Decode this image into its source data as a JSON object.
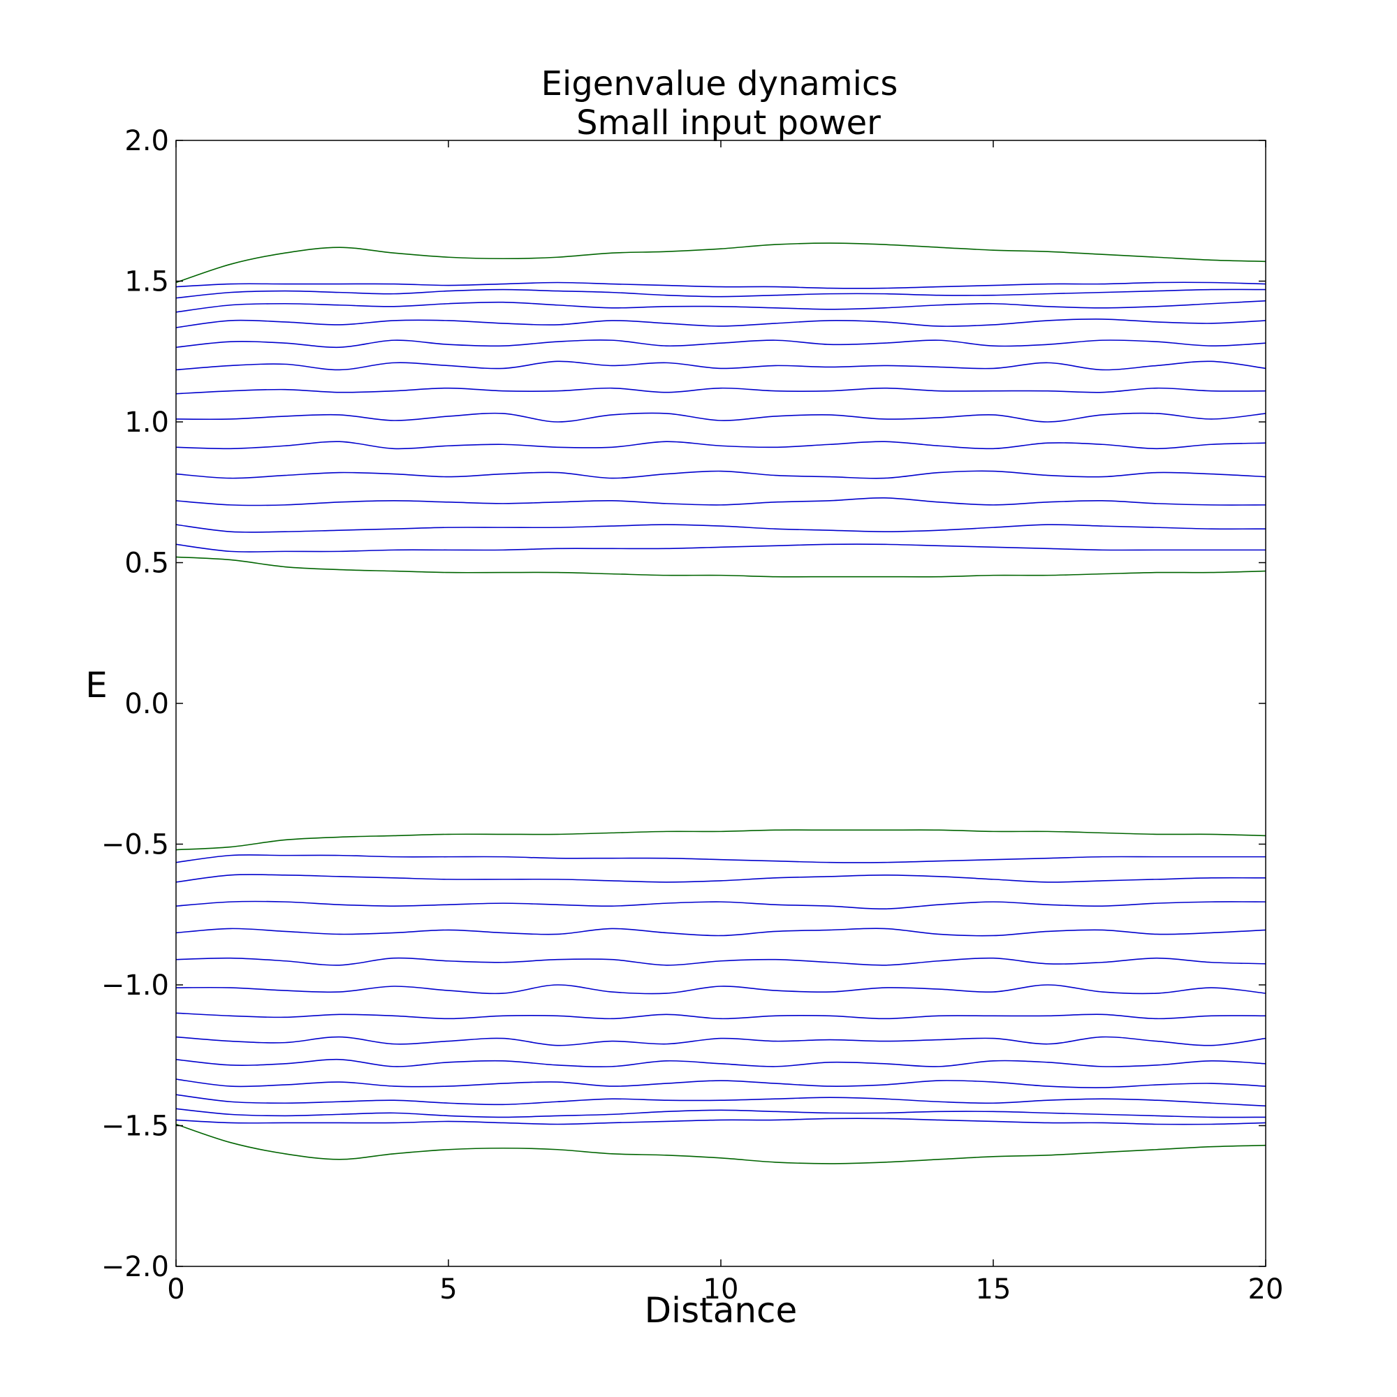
{
  "chart_data": {
    "type": "line",
    "title": "Eigenvalue dynamics",
    "subtitle": "Small input power",
    "xlabel": "Distance",
    "ylabel": "E",
    "xlim": [
      0,
      20
    ],
    "ylim": [
      -2.0,
      2.0
    ],
    "grid": false,
    "legend": "none",
    "x_ticks": [
      0,
      5,
      10,
      15,
      20
    ],
    "x_tick_labels": [
      "0",
      "5",
      "10",
      "15",
      "20"
    ],
    "y_ticks": [
      2.0,
      1.5,
      1.0,
      0.5,
      0.0,
      -0.5,
      -1.0,
      -1.5,
      -2.0
    ],
    "y_tick_labels": [
      "2.0",
      "1.5",
      "1.0",
      "0.5",
      "0.0",
      "−0.5",
      "−1.0",
      "−1.5",
      "−2.0"
    ],
    "colors": {
      "edge": "#006400",
      "bulk": "#0000cc"
    },
    "x": [
      0,
      1,
      2,
      3,
      4,
      5,
      6,
      7,
      8,
      9,
      10,
      11,
      12,
      13,
      14,
      15,
      16,
      17,
      18,
      19,
      20
    ],
    "series": [
      {
        "color": "#006400",
        "values": [
          1.495,
          1.56,
          1.6,
          1.62,
          1.6,
          1.585,
          1.58,
          1.585,
          1.6,
          1.605,
          1.615,
          1.63,
          1.635,
          1.63,
          1.62,
          1.61,
          1.605,
          1.595,
          1.585,
          1.575,
          1.57
        ]
      },
      {
        "color": "#0000cc",
        "values": [
          1.48,
          1.49,
          1.49,
          1.49,
          1.49,
          1.485,
          1.49,
          1.495,
          1.49,
          1.485,
          1.48,
          1.48,
          1.475,
          1.475,
          1.48,
          1.485,
          1.49,
          1.49,
          1.495,
          1.495,
          1.49
        ]
      },
      {
        "color": "#0000cc",
        "values": [
          1.44,
          1.46,
          1.465,
          1.46,
          1.455,
          1.465,
          1.47,
          1.465,
          1.46,
          1.45,
          1.445,
          1.45,
          1.455,
          1.455,
          1.45,
          1.45,
          1.455,
          1.46,
          1.465,
          1.47,
          1.47
        ]
      },
      {
        "color": "#0000cc",
        "values": [
          1.39,
          1.415,
          1.42,
          1.415,
          1.41,
          1.42,
          1.425,
          1.415,
          1.405,
          1.41,
          1.41,
          1.405,
          1.4,
          1.405,
          1.415,
          1.42,
          1.41,
          1.405,
          1.41,
          1.42,
          1.43
        ]
      },
      {
        "color": "#0000cc",
        "values": [
          1.335,
          1.36,
          1.355,
          1.345,
          1.36,
          1.36,
          1.35,
          1.345,
          1.36,
          1.35,
          1.34,
          1.35,
          1.36,
          1.355,
          1.34,
          1.345,
          1.36,
          1.365,
          1.355,
          1.35,
          1.36
        ]
      },
      {
        "color": "#0000cc",
        "values": [
          1.265,
          1.285,
          1.28,
          1.265,
          1.29,
          1.275,
          1.27,
          1.285,
          1.29,
          1.27,
          1.28,
          1.29,
          1.275,
          1.28,
          1.29,
          1.27,
          1.275,
          1.29,
          1.285,
          1.27,
          1.28
        ]
      },
      {
        "color": "#0000cc",
        "values": [
          1.185,
          1.2,
          1.205,
          1.185,
          1.21,
          1.2,
          1.19,
          1.215,
          1.2,
          1.21,
          1.19,
          1.2,
          1.195,
          1.2,
          1.195,
          1.19,
          1.21,
          1.185,
          1.2,
          1.215,
          1.19
        ]
      },
      {
        "color": "#0000cc",
        "values": [
          1.1,
          1.11,
          1.115,
          1.105,
          1.11,
          1.12,
          1.11,
          1.11,
          1.12,
          1.105,
          1.12,
          1.11,
          1.11,
          1.12,
          1.11,
          1.11,
          1.11,
          1.105,
          1.12,
          1.11,
          1.11
        ]
      },
      {
        "color": "#0000cc",
        "values": [
          1.01,
          1.01,
          1.02,
          1.025,
          1.005,
          1.02,
          1.03,
          1.0,
          1.025,
          1.03,
          1.005,
          1.02,
          1.025,
          1.01,
          1.015,
          1.025,
          1.0,
          1.025,
          1.03,
          1.01,
          1.03
        ]
      },
      {
        "color": "#0000cc",
        "values": [
          0.91,
          0.905,
          0.915,
          0.93,
          0.905,
          0.915,
          0.92,
          0.91,
          0.91,
          0.93,
          0.915,
          0.91,
          0.92,
          0.93,
          0.915,
          0.905,
          0.925,
          0.92,
          0.905,
          0.92,
          0.925
        ]
      },
      {
        "color": "#0000cc",
        "values": [
          0.815,
          0.8,
          0.81,
          0.82,
          0.815,
          0.805,
          0.815,
          0.82,
          0.8,
          0.815,
          0.825,
          0.81,
          0.805,
          0.8,
          0.82,
          0.825,
          0.81,
          0.805,
          0.82,
          0.815,
          0.805
        ]
      },
      {
        "color": "#0000cc",
        "values": [
          0.72,
          0.705,
          0.705,
          0.715,
          0.72,
          0.715,
          0.71,
          0.715,
          0.72,
          0.71,
          0.705,
          0.715,
          0.72,
          0.73,
          0.715,
          0.705,
          0.715,
          0.72,
          0.71,
          0.705,
          0.705
        ]
      },
      {
        "color": "#0000cc",
        "values": [
          0.635,
          0.61,
          0.61,
          0.615,
          0.62,
          0.625,
          0.625,
          0.625,
          0.63,
          0.635,
          0.63,
          0.62,
          0.615,
          0.61,
          0.615,
          0.625,
          0.635,
          0.63,
          0.625,
          0.62,
          0.62
        ]
      },
      {
        "color": "#0000cc",
        "values": [
          0.565,
          0.54,
          0.54,
          0.54,
          0.545,
          0.545,
          0.545,
          0.55,
          0.55,
          0.55,
          0.555,
          0.56,
          0.565,
          0.565,
          0.56,
          0.555,
          0.55,
          0.545,
          0.545,
          0.545,
          0.545
        ]
      },
      {
        "color": "#006400",
        "values": [
          0.52,
          0.51,
          0.485,
          0.475,
          0.47,
          0.465,
          0.465,
          0.465,
          0.46,
          0.455,
          0.455,
          0.45,
          0.45,
          0.45,
          0.45,
          0.455,
          0.455,
          0.46,
          0.465,
          0.465,
          0.47
        ]
      },
      {
        "color": "#006400",
        "values": [
          -0.52,
          -0.51,
          -0.485,
          -0.475,
          -0.47,
          -0.465,
          -0.465,
          -0.465,
          -0.46,
          -0.455,
          -0.455,
          -0.45,
          -0.45,
          -0.45,
          -0.45,
          -0.455,
          -0.455,
          -0.46,
          -0.465,
          -0.465,
          -0.47
        ]
      },
      {
        "color": "#0000cc",
        "values": [
          -0.565,
          -0.54,
          -0.54,
          -0.54,
          -0.545,
          -0.545,
          -0.545,
          -0.55,
          -0.55,
          -0.55,
          -0.555,
          -0.56,
          -0.565,
          -0.565,
          -0.56,
          -0.555,
          -0.55,
          -0.545,
          -0.545,
          -0.545,
          -0.545
        ]
      },
      {
        "color": "#0000cc",
        "values": [
          -0.635,
          -0.61,
          -0.61,
          -0.615,
          -0.62,
          -0.625,
          -0.625,
          -0.625,
          -0.63,
          -0.635,
          -0.63,
          -0.62,
          -0.615,
          -0.61,
          -0.615,
          -0.625,
          -0.635,
          -0.63,
          -0.625,
          -0.62,
          -0.62
        ]
      },
      {
        "color": "#0000cc",
        "values": [
          -0.72,
          -0.705,
          -0.705,
          -0.715,
          -0.72,
          -0.715,
          -0.71,
          -0.715,
          -0.72,
          -0.71,
          -0.705,
          -0.715,
          -0.72,
          -0.73,
          -0.715,
          -0.705,
          -0.715,
          -0.72,
          -0.71,
          -0.705,
          -0.705
        ]
      },
      {
        "color": "#0000cc",
        "values": [
          -0.815,
          -0.8,
          -0.81,
          -0.82,
          -0.815,
          -0.805,
          -0.815,
          -0.82,
          -0.8,
          -0.815,
          -0.825,
          -0.81,
          -0.805,
          -0.8,
          -0.82,
          -0.825,
          -0.81,
          -0.805,
          -0.82,
          -0.815,
          -0.805
        ]
      },
      {
        "color": "#0000cc",
        "values": [
          -0.91,
          -0.905,
          -0.915,
          -0.93,
          -0.905,
          -0.915,
          -0.92,
          -0.91,
          -0.91,
          -0.93,
          -0.915,
          -0.91,
          -0.92,
          -0.93,
          -0.915,
          -0.905,
          -0.925,
          -0.92,
          -0.905,
          -0.92,
          -0.925
        ]
      },
      {
        "color": "#0000cc",
        "values": [
          -1.01,
          -1.01,
          -1.02,
          -1.025,
          -1.005,
          -1.02,
          -1.03,
          -1.0,
          -1.025,
          -1.03,
          -1.005,
          -1.02,
          -1.025,
          -1.01,
          -1.015,
          -1.025,
          -1.0,
          -1.025,
          -1.03,
          -1.01,
          -1.03
        ]
      },
      {
        "color": "#0000cc",
        "values": [
          -1.1,
          -1.11,
          -1.115,
          -1.105,
          -1.11,
          -1.12,
          -1.11,
          -1.11,
          -1.12,
          -1.105,
          -1.12,
          -1.11,
          -1.11,
          -1.12,
          -1.11,
          -1.11,
          -1.11,
          -1.105,
          -1.12,
          -1.11,
          -1.11
        ]
      },
      {
        "color": "#0000cc",
        "values": [
          -1.185,
          -1.2,
          -1.205,
          -1.185,
          -1.21,
          -1.2,
          -1.19,
          -1.215,
          -1.2,
          -1.21,
          -1.19,
          -1.2,
          -1.195,
          -1.2,
          -1.195,
          -1.19,
          -1.21,
          -1.185,
          -1.2,
          -1.215,
          -1.19
        ]
      },
      {
        "color": "#0000cc",
        "values": [
          -1.265,
          -1.285,
          -1.28,
          -1.265,
          -1.29,
          -1.275,
          -1.27,
          -1.285,
          -1.29,
          -1.27,
          -1.28,
          -1.29,
          -1.275,
          -1.28,
          -1.29,
          -1.27,
          -1.275,
          -1.29,
          -1.285,
          -1.27,
          -1.28
        ]
      },
      {
        "color": "#0000cc",
        "values": [
          -1.335,
          -1.36,
          -1.355,
          -1.345,
          -1.36,
          -1.36,
          -1.35,
          -1.345,
          -1.36,
          -1.35,
          -1.34,
          -1.35,
          -1.36,
          -1.355,
          -1.34,
          -1.345,
          -1.36,
          -1.365,
          -1.355,
          -1.35,
          -1.36
        ]
      },
      {
        "color": "#0000cc",
        "values": [
          -1.39,
          -1.415,
          -1.42,
          -1.415,
          -1.41,
          -1.42,
          -1.425,
          -1.415,
          -1.405,
          -1.41,
          -1.41,
          -1.405,
          -1.4,
          -1.405,
          -1.415,
          -1.42,
          -1.41,
          -1.405,
          -1.41,
          -1.42,
          -1.43
        ]
      },
      {
        "color": "#0000cc",
        "values": [
          -1.44,
          -1.46,
          -1.465,
          -1.46,
          -1.455,
          -1.465,
          -1.47,
          -1.465,
          -1.46,
          -1.45,
          -1.445,
          -1.45,
          -1.455,
          -1.455,
          -1.45,
          -1.45,
          -1.455,
          -1.46,
          -1.465,
          -1.47,
          -1.47
        ]
      },
      {
        "color": "#0000cc",
        "values": [
          -1.48,
          -1.49,
          -1.49,
          -1.49,
          -1.49,
          -1.485,
          -1.49,
          -1.495,
          -1.49,
          -1.485,
          -1.48,
          -1.48,
          -1.475,
          -1.475,
          -1.48,
          -1.485,
          -1.49,
          -1.49,
          -1.495,
          -1.495,
          -1.49
        ]
      },
      {
        "color": "#006400",
        "values": [
          -1.495,
          -1.56,
          -1.6,
          -1.62,
          -1.6,
          -1.585,
          -1.58,
          -1.585,
          -1.6,
          -1.605,
          -1.615,
          -1.63,
          -1.635,
          -1.63,
          -1.62,
          -1.61,
          -1.605,
          -1.595,
          -1.585,
          -1.575,
          -1.57
        ]
      }
    ]
  }
}
